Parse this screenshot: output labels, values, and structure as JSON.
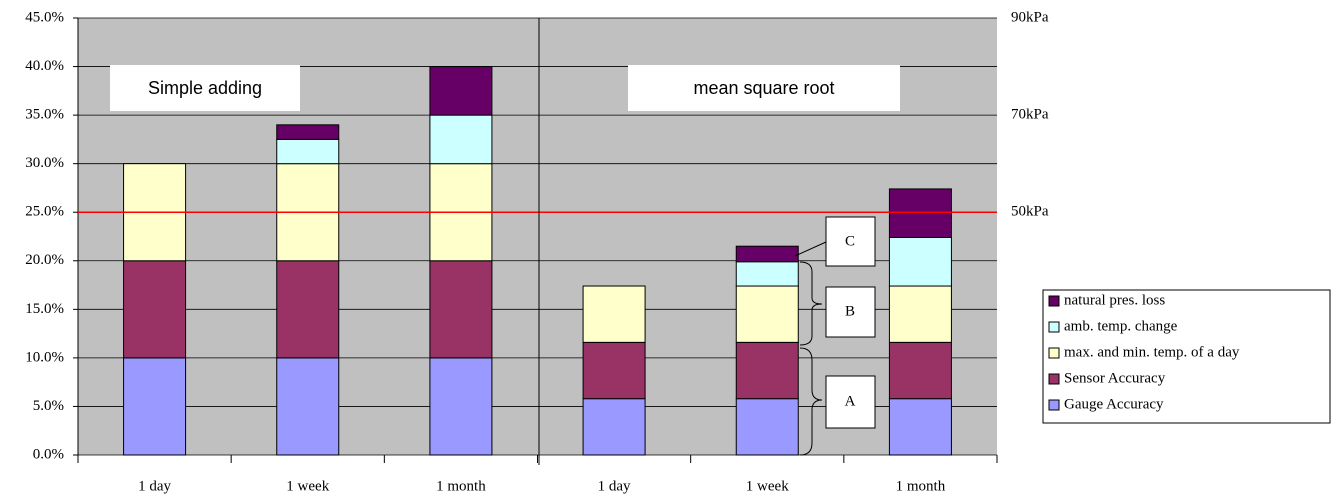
{
  "chart_data": {
    "type": "stacked_bar",
    "categories": [
      "1 day",
      "1 week",
      "1 month",
      "1 day",
      "1 week",
      "1 month"
    ],
    "series": [
      {
        "name": "Gauge Accuracy",
        "color": "#9999ff",
        "values": [
          10,
          10,
          10,
          5.8,
          5.8,
          5.8
        ]
      },
      {
        "name": "Sensor Accuracy",
        "color": "#993366",
        "values": [
          10,
          10,
          10,
          5.8,
          5.8,
          5.8
        ]
      },
      {
        "name": "max. and min. temp. of a day",
        "color": "#ffffcc",
        "values": [
          10,
          10,
          10,
          5.8,
          5.8,
          5.8
        ]
      },
      {
        "name": "amb. temp. change",
        "color": "#ccffff",
        "values": [
          0,
          2.5,
          5,
          0,
          2.5,
          5
        ]
      },
      {
        "name": "natural pres. loss",
        "color": "#660066",
        "values": [
          0,
          1.5,
          5,
          0,
          1.6,
          5
        ]
      }
    ],
    "ylim": [
      0,
      45
    ],
    "yticks": [
      {
        "value": 0,
        "label": "0.0%"
      },
      {
        "value": 5,
        "label": "5.0%"
      },
      {
        "value": 10,
        "label": "10.0%"
      },
      {
        "value": 15,
        "label": "15.0%"
      },
      {
        "value": 20,
        "label": "20.0%"
      },
      {
        "value": 25,
        "label": "25.0%"
      },
      {
        "value": 30,
        "label": "30.0%"
      },
      {
        "value": 35,
        "label": "35.0%"
      },
      {
        "value": 40,
        "label": "40.0%"
      },
      {
        "value": 45,
        "label": "45.0%"
      }
    ],
    "y2lim": [
      0,
      90
    ],
    "y2ticks": [
      {
        "value": 50,
        "label": "50kPa"
      },
      {
        "value": 70,
        "label": "70kPa"
      },
      {
        "value": 90,
        "label": "90kPa"
      }
    ],
    "reference_line": {
      "value": 25,
      "color": "#ff0000"
    },
    "grid": true,
    "legend_position": "right",
    "annotations": [
      "Simple adding",
      "mean square root",
      "A",
      "B",
      "C"
    ]
  }
}
